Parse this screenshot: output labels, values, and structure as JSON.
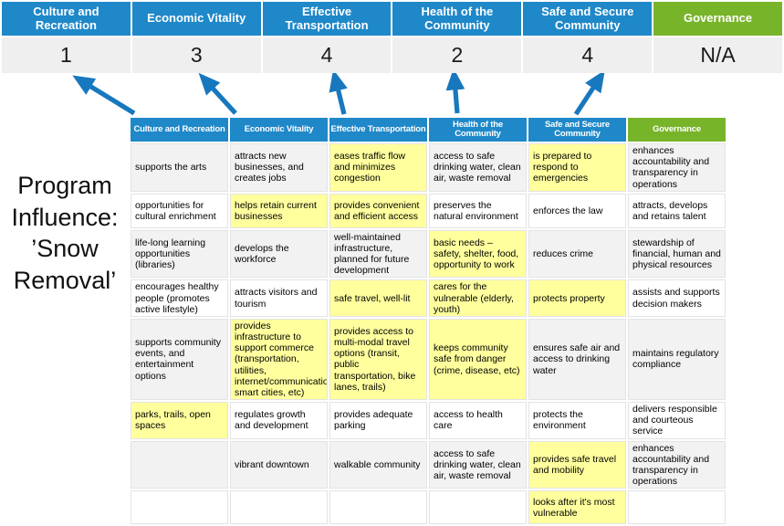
{
  "colors": {
    "blue": "#1f88c9",
    "green": "#78b42a",
    "highlight": "#ffff9e",
    "arrow": "#1878be",
    "alt_row": "#f2f2f2",
    "score_bg": "#efefef"
  },
  "program_label": {
    "lines": [
      "Program",
      "Influence:",
      "’Snow",
      "Removal’"
    ]
  },
  "summary": {
    "columns": [
      {
        "label": "Culture and Recreation",
        "score": "1",
        "color": "blue"
      },
      {
        "label": "Economic Vitality",
        "score": "3",
        "color": "blue"
      },
      {
        "label": "Effective Transportation",
        "score": "4",
        "color": "blue"
      },
      {
        "label": "Health of the Community",
        "score": "2",
        "color": "blue"
      },
      {
        "label": "Safe and Secure Community",
        "score": "4",
        "color": "blue"
      },
      {
        "label": "Governance",
        "score": "N/A",
        "color": "green"
      }
    ]
  },
  "matrix": {
    "headers": [
      {
        "label": "Culture and Recreation",
        "color": "blue"
      },
      {
        "label": "Economic Vitality",
        "color": "blue"
      },
      {
        "label": "Effective Transportation",
        "color": "blue"
      },
      {
        "label": "Health of the Community",
        "color": "blue"
      },
      {
        "label": "Safe and Secure Community",
        "color": "blue"
      },
      {
        "label": "Governance",
        "color": "green"
      }
    ],
    "rows": [
      [
        {
          "text": "supports the arts",
          "highlight": false
        },
        {
          "text": "attracts new businesses, and creates jobs",
          "highlight": false
        },
        {
          "text": "eases traffic flow and minimizes congestion",
          "highlight": true
        },
        {
          "text": "access to safe drinking water, clean air, waste removal",
          "highlight": false
        },
        {
          "text": "is prepared to respond to emergencies",
          "highlight": true
        },
        {
          "text": "enhances accountability and transparency in operations",
          "highlight": false
        }
      ],
      [
        {
          "text": "opportunities for cultural enrichment",
          "highlight": false
        },
        {
          "text": "helps retain current businesses",
          "highlight": true
        },
        {
          "text": "provides convenient and efficient access",
          "highlight": true
        },
        {
          "text": "preserves the natural environment",
          "highlight": false
        },
        {
          "text": "enforces the law",
          "highlight": false
        },
        {
          "text": "attracts, develops and retains talent",
          "highlight": false
        }
      ],
      [
        {
          "text": "life-long learning opportunities (libraries)",
          "highlight": false
        },
        {
          "text": "develops the workforce",
          "highlight": false
        },
        {
          "text": "well-maintained infrastructure, planned for future development",
          "highlight": false
        },
        {
          "text": "basic needs – safety, shelter, food, opportunity to work",
          "highlight": true
        },
        {
          "text": "reduces crime",
          "highlight": false
        },
        {
          "text": "stewardship of financial, human and physical resources",
          "highlight": false
        }
      ],
      [
        {
          "text": "encourages healthy people (promotes active lifestyle)",
          "highlight": false
        },
        {
          "text": "attracts visitors and tourism",
          "highlight": false
        },
        {
          "text": "safe travel, well-lit",
          "highlight": true
        },
        {
          "text": "cares for the vulnerable (elderly, youth)",
          "highlight": true
        },
        {
          "text": "protects property",
          "highlight": true
        },
        {
          "text": "assists and supports decision makers",
          "highlight": false
        }
      ],
      [
        {
          "text": "supports community events, and entertainment options",
          "highlight": false
        },
        {
          "text": "provides infrastructure to support commerce (transportation, utilities, internet/communications, smart cities, etc)",
          "highlight": true
        },
        {
          "text": "provides access to multi-modal travel options (transit, public transportation, bike lanes, trails)",
          "highlight": true
        },
        {
          "text": "keeps community safe from danger (crime, disease, etc)",
          "highlight": true
        },
        {
          "text": "ensures safe air and access to drinking water",
          "highlight": false
        },
        {
          "text": "maintains regulatory compliance",
          "highlight": false
        }
      ],
      [
        {
          "text": "parks, trails, open spaces",
          "highlight": true
        },
        {
          "text": "regulates growth and development",
          "highlight": false
        },
        {
          "text": "provides adequate parking",
          "highlight": false
        },
        {
          "text": "access to health care",
          "highlight": false
        },
        {
          "text": "protects the environment",
          "highlight": false
        },
        {
          "text": "delivers responsible and courteous service",
          "highlight": false
        }
      ],
      [
        {
          "text": "",
          "highlight": false
        },
        {
          "text": "vibrant downtown",
          "highlight": false
        },
        {
          "text": "walkable community",
          "highlight": false
        },
        {
          "text": "access to safe drinking water, clean air, waste removal",
          "highlight": false
        },
        {
          "text": "provides safe travel and mobility",
          "highlight": true
        },
        {
          "text": "enhances accountability and transparency in operations",
          "highlight": false
        }
      ],
      [
        {
          "text": "",
          "highlight": false
        },
        {
          "text": "",
          "highlight": false
        },
        {
          "text": "",
          "highlight": false
        },
        {
          "text": "",
          "highlight": false
        },
        {
          "text": "looks after it's most vulnerable",
          "highlight": true
        },
        {
          "text": "",
          "highlight": false
        }
      ]
    ]
  }
}
